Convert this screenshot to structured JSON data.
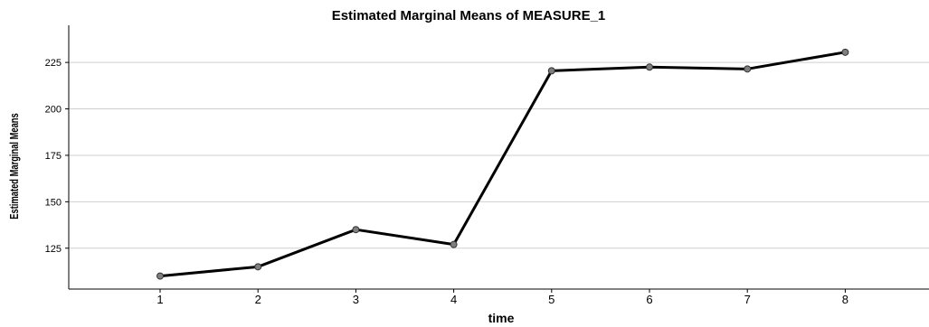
{
  "chart_data": {
    "type": "line",
    "title": "Estimated Marginal Means of MEASURE_1",
    "xlabel": "time",
    "ylabel": "Estimated Marginal Means",
    "categories": [
      "1",
      "2",
      "3",
      "4",
      "5",
      "6",
      "7",
      "8"
    ],
    "values": [
      110,
      115,
      135,
      127,
      220.5,
      222.5,
      221.5,
      230.5
    ],
    "yticks": [
      125,
      150,
      175,
      200,
      225
    ],
    "ylim": [
      103,
      245
    ],
    "grid": true,
    "line_color": "#000000",
    "marker_color": "#7f7f7f"
  }
}
